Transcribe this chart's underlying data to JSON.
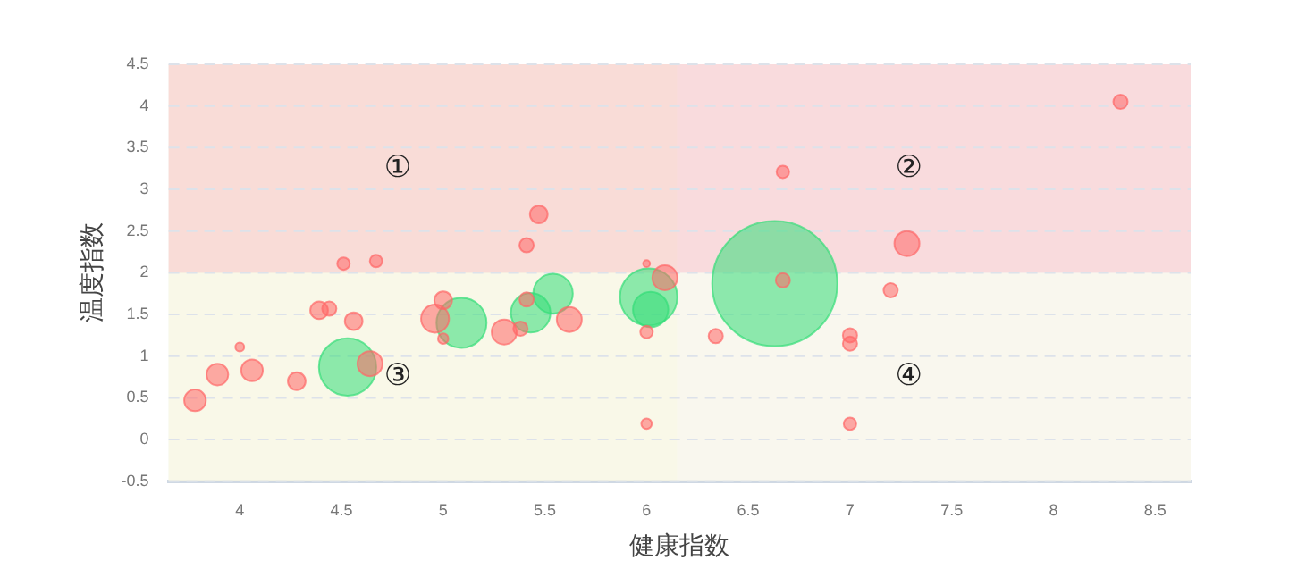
{
  "chart_data": {
    "type": "bubble",
    "xlabel": "健康指数",
    "ylabel": "温度指数",
    "xlim": [
      3.65,
      8.675
    ],
    "xticks": [
      4,
      4.5,
      5,
      5.5,
      6,
      6.5,
      7,
      7.5,
      8,
      8.5
    ],
    "ylim": [
      -0.5,
      4.5
    ],
    "yticks": [
      -0.5,
      0,
      0.5,
      1,
      1.5,
      2,
      2.5,
      3,
      3.5,
      4,
      4.5
    ],
    "grid": "y",
    "legend": false,
    "bands": [
      {
        "axis": "x",
        "from": 3.65,
        "to": 6.15,
        "color": "#e4f1dc"
      },
      {
        "axis": "x",
        "from": 6.15,
        "to": 8.675,
        "color": "#e6eef8"
      },
      {
        "axis": "y",
        "from": 2,
        "to": 4.5,
        "color": "#ffcaca"
      },
      {
        "axis": "y",
        "from": -0.5,
        "to": 2,
        "color": "#fff8e6"
      }
    ],
    "annotations": [
      "①",
      "②",
      "③",
      "④"
    ],
    "series": [
      {
        "color": "#ff6666",
        "x": [
          3.78,
          3.89,
          4.0,
          4.06,
          4.28,
          4.39,
          4.44,
          4.51,
          4.67,
          4.56,
          4.64,
          5.0,
          4.96,
          5.0,
          5.3,
          5.38,
          5.41,
          5.62,
          6.0,
          6.0,
          6.0,
          6.09,
          5.47,
          5.41,
          8.33,
          6.67,
          7.28,
          6.67,
          7.2,
          6.34,
          7.0,
          7.0,
          7.0
        ],
        "values": [
          0.47,
          0.78,
          1.11,
          0.83,
          0.7,
          1.55,
          1.57,
          2.11,
          2.14,
          1.42,
          0.91,
          1.67,
          1.45,
          1.21,
          1.29,
          1.33,
          1.68,
          1.44,
          1.29,
          0.19,
          2.11,
          1.94,
          2.7,
          2.33,
          4.05,
          3.21,
          2.35,
          1.91,
          1.79,
          1.24,
          1.25,
          1.15,
          0.19
        ],
        "sizes": [
          0.03,
          0.03,
          0.005,
          0.03,
          0.02,
          0.02,
          0.013,
          0.01,
          0.01,
          0.02,
          0.04,
          0.02,
          0.05,
          0.007,
          0.04,
          0.013,
          0.013,
          0.04,
          0.01,
          0.007,
          0.003,
          0.04,
          0.02,
          0.013,
          0.013,
          0.01,
          0.04,
          0.013,
          0.013,
          0.013,
          0.013,
          0.013,
          0.01
        ]
      },
      {
        "color": "#33dd77",
        "x": [
          4.53,
          5.09,
          5.43,
          5.54,
          6.01,
          6.02,
          6.63
        ],
        "values": [
          0.87,
          1.4,
          1.52,
          1.75,
          1.71,
          1.56,
          1.87
        ],
        "sizes": [
          0.21,
          0.16,
          0.1,
          0.1,
          0.21,
          0.08,
          1
        ]
      }
    ]
  }
}
